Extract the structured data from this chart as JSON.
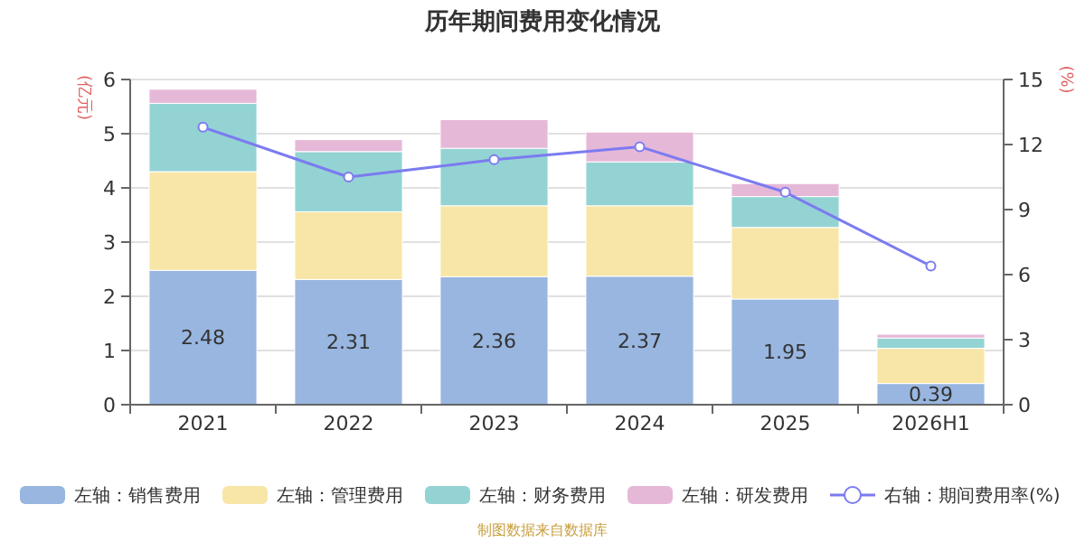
{
  "chart_data": {
    "type": "bar",
    "title": "历年期间费用变化情况",
    "ylabel": "(亿元)",
    "y2label": "(%)",
    "categories": [
      "2021",
      "2022",
      "2023",
      "2024",
      "2025",
      "2026H1"
    ],
    "stacked": true,
    "series": [
      {
        "name": "左轴：销售费用",
        "color": "#98b6e0",
        "values": [
          2.48,
          2.31,
          2.36,
          2.37,
          1.95,
          0.39
        ],
        "value_labels": [
          "2.48",
          "2.31",
          "2.36",
          "2.37",
          "1.95",
          "0.39"
        ]
      },
      {
        "name": "左轴：管理费用",
        "color": "#f8e6a8",
        "values": [
          1.82,
          1.25,
          1.31,
          1.3,
          1.32,
          0.65
        ]
      },
      {
        "name": "左轴：财务费用",
        "color": "#94d3d3",
        "values": [
          1.26,
          1.11,
          1.06,
          0.81,
          0.57,
          0.19
        ]
      },
      {
        "name": "左轴：研发费用",
        "color": "#e6b8d8",
        "values": [
          0.26,
          0.22,
          0.53,
          0.55,
          0.24,
          0.07
        ]
      },
      {
        "name": "右轴：期间费用率(%)",
        "type": "line",
        "axis": "y2",
        "color": "#7b7bf0",
        "values": [
          12.8,
          10.5,
          11.3,
          11.9,
          9.8,
          6.4
        ]
      }
    ],
    "ylim": [
      0,
      6
    ],
    "yticks": [
      0,
      1,
      2,
      3,
      4,
      5,
      6
    ],
    "y2lim": [
      0,
      15
    ],
    "y2ticks": [
      0,
      3,
      6,
      9,
      12,
      15
    ],
    "grid": "y",
    "legend": "bottom",
    "marker": "circle",
    "annotations": [
      "制图数据来自数据库"
    ]
  }
}
